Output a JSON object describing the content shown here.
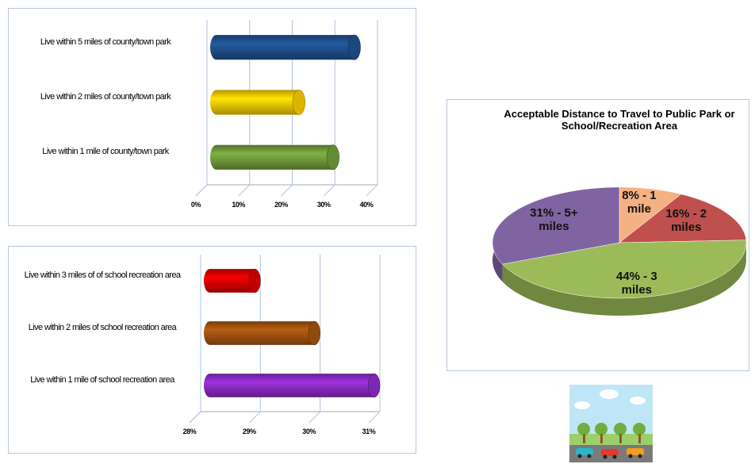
{
  "chart_data": [
    {
      "type": "bar",
      "orientation": "horizontal",
      "categories": [
        "Live within 5 miles of county/town park",
        "Live within 2 miles of county/town park",
        "Live within 1 mile of county/town park"
      ],
      "values": [
        36,
        23,
        31
      ],
      "colors": [
        "#1f4e8c",
        "#f5c800",
        "#6f9a3a"
      ],
      "xlim": [
        0,
        40
      ],
      "xticks": [
        {
          "value": 0,
          "label": "0%"
        },
        {
          "value": 10,
          "label": "10%"
        },
        {
          "value": 20,
          "label": "20%"
        },
        {
          "value": 30,
          "label": "30%"
        },
        {
          "value": 40,
          "label": "40%"
        }
      ],
      "grid": true
    },
    {
      "type": "bar",
      "orientation": "horizontal",
      "categories": [
        "Live within 3 miles of of school recreation area",
        "Live within 2 miles of school recreation area",
        "Live within 1 mile of school recreation area"
      ],
      "values": [
        29,
        30,
        31
      ],
      "colors": [
        "#d80000",
        "#a0520f",
        "#8a2bc2"
      ],
      "xlim": [
        28,
        31
      ],
      "xticks": [
        {
          "value": 28,
          "label": "28%"
        },
        {
          "value": 29,
          "label": "29%"
        },
        {
          "value": 30,
          "label": "30%"
        },
        {
          "value": 31,
          "label": "31%"
        }
      ],
      "grid": true
    },
    {
      "type": "pie",
      "title": "Acceptable  Distance to Travel to Public Park  or School/Recreation Area",
      "categories": [
        "1 mile",
        "2 miles",
        "3 miles",
        "5+ miles"
      ],
      "values": [
        8,
        16,
        44,
        31
      ],
      "value_labels": [
        "8% - 1 mile",
        "16% - 2 miles",
        "44% - 3 miles",
        "31% - 5+ miles"
      ],
      "colors": [
        "#f4b183",
        "#c0504d",
        "#9bbb59",
        "#8064a2"
      ]
    }
  ]
}
